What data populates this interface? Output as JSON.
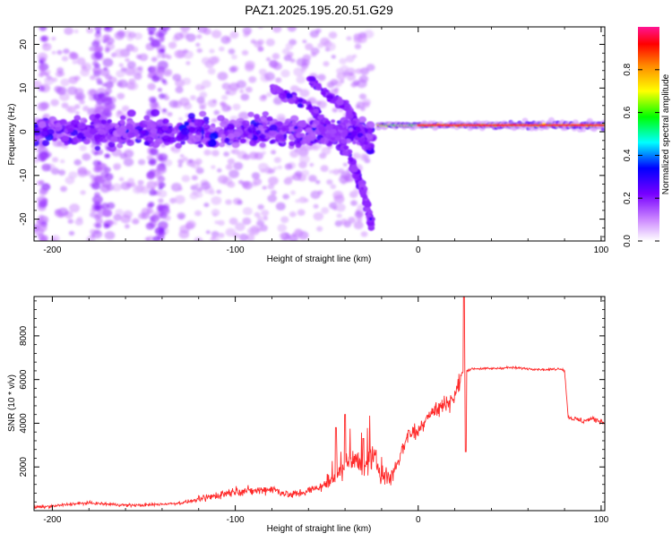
{
  "title": "PAZ1.2025.195.20.51.G29",
  "chart_data": [
    {
      "type": "heatmap",
      "xlabel": "Height of straight line (km)",
      "ylabel": "Frequency (Hz)",
      "xlim": [
        -210,
        102
      ],
      "ylim": [
        -25,
        24
      ],
      "xticks": [
        -200,
        -100,
        0,
        100
      ],
      "yticks": [
        -20,
        -10,
        0,
        10,
        20
      ],
      "x_ticklabels": [
        "-200",
        "-100",
        "0",
        "100"
      ],
      "y_ticklabels": [
        "-20",
        "-10",
        "0",
        "10",
        "20"
      ],
      "colorbar": {
        "label": "Normalized spectral amplitude",
        "range": [
          0,
          1
        ],
        "ticks": [
          0,
          0.2,
          0.4,
          0.6,
          0.8
        ],
        "ticklabels": [
          "0.0",
          "0.2",
          "0.4",
          "0.6",
          "0.8"
        ],
        "colors": [
          "#ffffff",
          "#cc88ff",
          "#7700ff",
          "#0000ff",
          "#00ffff",
          "#00ff00",
          "#ffff00",
          "#ff8800",
          "#ff0000",
          "#ff1493"
        ]
      },
      "features": [
        {
          "region": "noise band",
          "x_range": [
            -210,
            -25
          ],
          "freq_center": 0,
          "freq_spread": 5,
          "amplitude": 0.25
        },
        {
          "region": "descending branch",
          "x": [
            -80,
            -60,
            -45,
            -35,
            -28,
            -25
          ],
          "freq": [
            10,
            6,
            0,
            -8,
            -16,
            -22
          ],
          "amplitude": 0.2
        },
        {
          "region": "upper branch",
          "x": [
            -60,
            -48,
            -40,
            -34,
            -30,
            -26
          ],
          "freq": [
            12,
            8,
            6,
            2,
            -2,
            -4
          ],
          "amplitude": 0.3
        },
        {
          "region": "carrier line",
          "x_range": [
            -22,
            102
          ],
          "freq": 1.5,
          "amplitude": 0.95
        }
      ],
      "grid": false
    },
    {
      "type": "line",
      "xlabel": "Height of straight line (km)",
      "ylabel": "SNR (10 * v/v)",
      "xlim": [
        -210,
        102
      ],
      "ylim": [
        0,
        9800
      ],
      "xticks": [
        -200,
        -100,
        0,
        100
      ],
      "yticks": [
        2000,
        4000,
        6000,
        8000
      ],
      "x_ticklabels": [
        "-200",
        "-100",
        "0",
        "100"
      ],
      "y_ticklabels": [
        "2000",
        "4000",
        "6000",
        "8000"
      ],
      "color": "#ff2a2a",
      "series": [
        {
          "x": [
            -210,
            -200,
            -190,
            -180,
            -170,
            -160,
            -150,
            -140,
            -130,
            -120,
            -110,
            -100,
            -90,
            -80,
            -70,
            -60,
            -50,
            -40,
            -35,
            -30,
            -25,
            -20,
            -15,
            -10,
            -5,
            0,
            5,
            10,
            15,
            20,
            24,
            26,
            30,
            40,
            50,
            60,
            70,
            78,
            80,
            82,
            85,
            90,
            95,
            100,
            102
          ],
          "y": [
            150,
            200,
            300,
            350,
            300,
            250,
            250,
            300,
            350,
            500,
            700,
            900,
            900,
            1000,
            700,
            900,
            1200,
            2000,
            2500,
            1800,
            2500,
            1700,
            1500,
            2500,
            3600,
            3600,
            4400,
            4600,
            4900,
            5200,
            6300,
            6400,
            6500,
            6500,
            6550,
            6500,
            6450,
            6500,
            6400,
            4300,
            4200,
            4100,
            4200,
            4100,
            4000
          ]
        }
      ],
      "spikes": [
        {
          "x": 25,
          "y": 9800
        },
        {
          "x": 26,
          "y": 2700
        },
        {
          "x": -45,
          "y": 3800
        },
        {
          "x": -40,
          "y": 4400
        },
        {
          "x": -30,
          "y": 3300
        }
      ],
      "grid": false
    }
  ]
}
